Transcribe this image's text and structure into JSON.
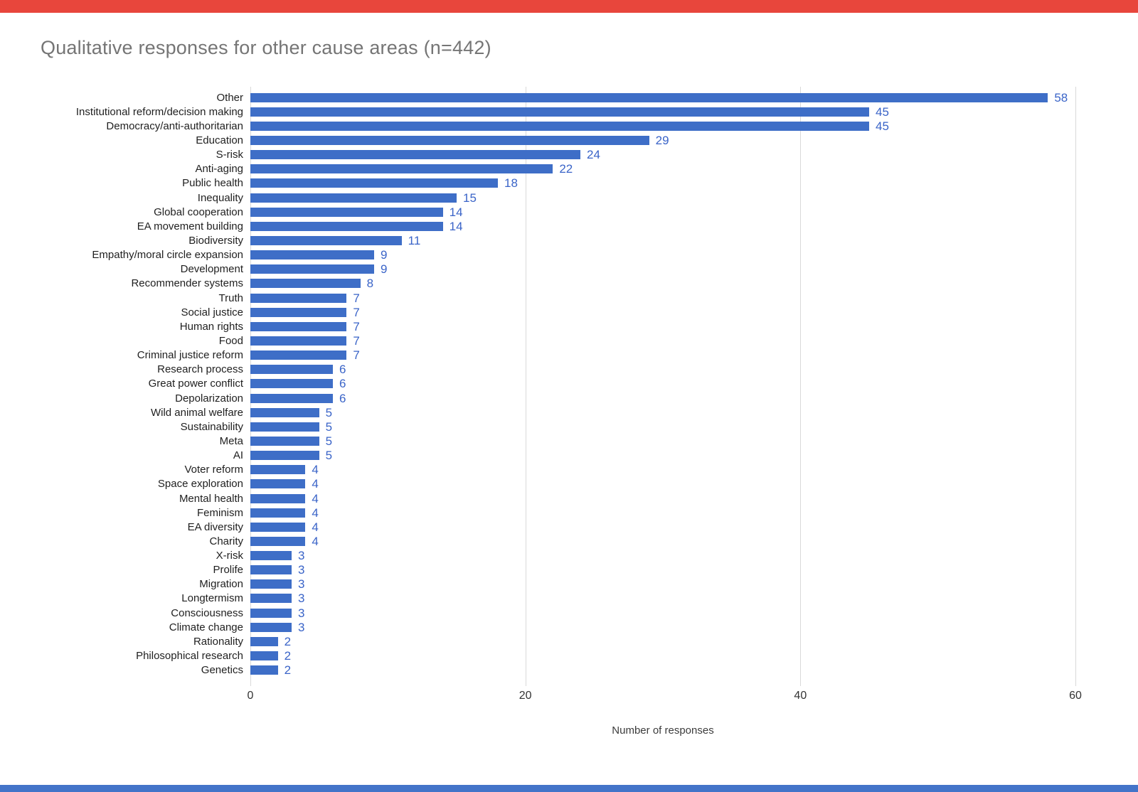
{
  "page": {
    "background": "#ffffff",
    "top_band_color": "#e8463c",
    "bottom_band_color": "#4374c9"
  },
  "chart_data": {
    "type": "bar",
    "orientation": "horizontal",
    "title": "Qualitative responses for other cause areas (n=442)",
    "title_color": "#757575",
    "xlabel": "Number of responses",
    "ylabel": "",
    "xlim": [
      0,
      60
    ],
    "x_ticks": [
      0,
      20,
      40,
      60
    ],
    "grid": true,
    "bar_color": "#3e6ec7",
    "value_label_color": "#3a64c8",
    "categories": [
      "Other",
      "Institutional reform/decision making",
      "Democracy/anti-authoritarian",
      "Education",
      "S-risk",
      "Anti-aging",
      "Public health",
      "Inequality",
      "Global cooperation",
      "EA movement building",
      "Biodiversity",
      "Empathy/moral circle expansion",
      "Development",
      "Recommender systems",
      "Truth",
      "Social justice",
      "Human rights",
      "Food",
      "Criminal justice reform",
      "Research process",
      "Great power conflict",
      "Depolarization",
      "Wild animal welfare",
      "Sustainability",
      "Meta",
      "AI",
      "Voter reform",
      "Space exploration",
      "Mental health",
      "Feminism",
      "EA diversity",
      "Charity",
      "X-risk",
      "Prolife",
      "Migration",
      "Longtermism",
      "Consciousness",
      "Climate change",
      "Rationality",
      "Philosophical research",
      "Genetics"
    ],
    "values": [
      58,
      45,
      45,
      29,
      24,
      22,
      18,
      15,
      14,
      14,
      11,
      9,
      9,
      8,
      7,
      7,
      7,
      7,
      7,
      6,
      6,
      6,
      5,
      5,
      5,
      5,
      4,
      4,
      4,
      4,
      4,
      4,
      3,
      3,
      3,
      3,
      3,
      3,
      2,
      2,
      2
    ],
    "total_label": "n=442"
  }
}
